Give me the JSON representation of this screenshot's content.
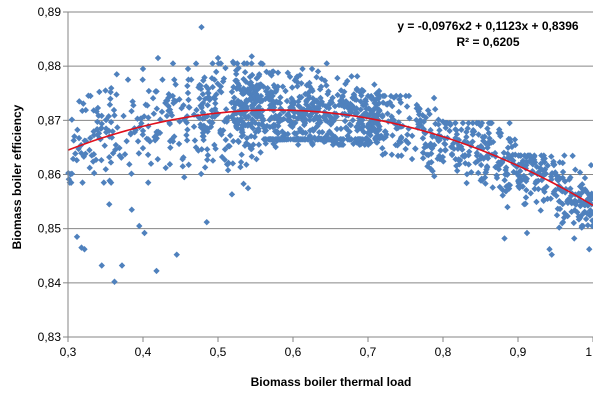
{
  "chart_data": {
    "type": "scatter",
    "xlabel": "Biomass boiler thermal load",
    "ylabel": "Biomass boiler efficiency",
    "xlim": [
      0.3,
      1.0
    ],
    "ylim": [
      0.83,
      0.89
    ],
    "x_ticks": [
      "0,3",
      "0,4",
      "0,5",
      "0,6",
      "0,7",
      "0,8",
      "0,9",
      "1"
    ],
    "y_ticks": [
      "0,83",
      "0,84",
      "0,85",
      "0,86",
      "0,87",
      "0,88",
      "0,89"
    ],
    "grid": "horizontal",
    "annotation": {
      "equation": "y = -0,0976x2 + 0,1123x + 0,8396",
      "r_squared": "R² = 0,6205"
    },
    "trendline": {
      "type": "polynomial",
      "a": -0.0976,
      "b": 0.1123,
      "c": 0.8396
    },
    "marker_color": "#4f81bd",
    "trendline_color": "#e0101c",
    "points": [
      [
        0.312,
        0.8485
      ],
      [
        0.318,
        0.8465
      ],
      [
        0.322,
        0.8462
      ],
      [
        0.345,
        0.8432
      ],
      [
        0.362,
        0.8402
      ],
      [
        0.372,
        0.8432
      ],
      [
        0.395,
        0.8505
      ],
      [
        0.402,
        0.8492
      ],
      [
        0.418,
        0.8422
      ],
      [
        0.445,
        0.8452
      ],
      [
        0.478,
        0.8872
      ],
      [
        0.485,
        0.8512
      ],
      [
        0.942,
        0.8462
      ],
      [
        0.945,
        0.8452
      ],
      [
        0.955,
        0.8502
      ],
      [
        0.96,
        0.8512
      ],
      [
        0.975,
        0.8482
      ],
      [
        0.985,
        0.8502
      ],
      [
        0.995,
        0.8462
      ],
      [
        0.882,
        0.8482
      ],
      [
        0.912,
        0.8492
      ],
      [
        0.355,
        0.8545
      ],
      [
        0.385,
        0.8535
      ],
      [
        0.455,
        0.8595
      ],
      [
        0.315,
        0.8735
      ],
      [
        0.33,
        0.8745
      ],
      [
        0.35,
        0.8755
      ],
      [
        0.365,
        0.8785
      ],
      [
        0.38,
        0.8775
      ],
      [
        0.4,
        0.8795
      ],
      [
        0.42,
        0.8815
      ],
      [
        0.44,
        0.8805
      ],
      [
        0.46,
        0.8795
      ],
      [
        0.5,
        0.8815
      ],
      [
        0.52,
        0.8808
      ],
      [
        0.545,
        0.8818
      ],
      [
        0.555,
        0.8785
      ],
      [
        0.58,
        0.8788
      ],
      [
        0.645,
        0.8805
      ]
    ],
    "bands": [
      {
        "x0": 0.3,
        "x1": 0.5,
        "y0": 0.8585,
        "y1": 0.8775,
        "n": 220
      },
      {
        "x0": 0.47,
        "x1": 0.56,
        "y0": 0.8545,
        "y1": 0.8805,
        "n": 150
      },
      {
        "x0": 0.52,
        "x1": 0.72,
        "y0": 0.8655,
        "y1": 0.8795,
        "n": 520
      },
      {
        "x0": 0.56,
        "x1": 0.7,
        "y0": 0.8525,
        "y1": 0.8665,
        "n": 120
      },
      {
        "x0": 0.7,
        "x1": 0.8,
        "y0": 0.8585,
        "y1": 0.8745,
        "n": 150
      },
      {
        "x0": 0.8,
        "x1": 0.9,
        "y0": 0.8535,
        "y1": 0.8695,
        "n": 170
      },
      {
        "x0": 0.9,
        "x1": 1.0,
        "y0": 0.8505,
        "y1": 0.8635,
        "n": 200
      }
    ]
  }
}
